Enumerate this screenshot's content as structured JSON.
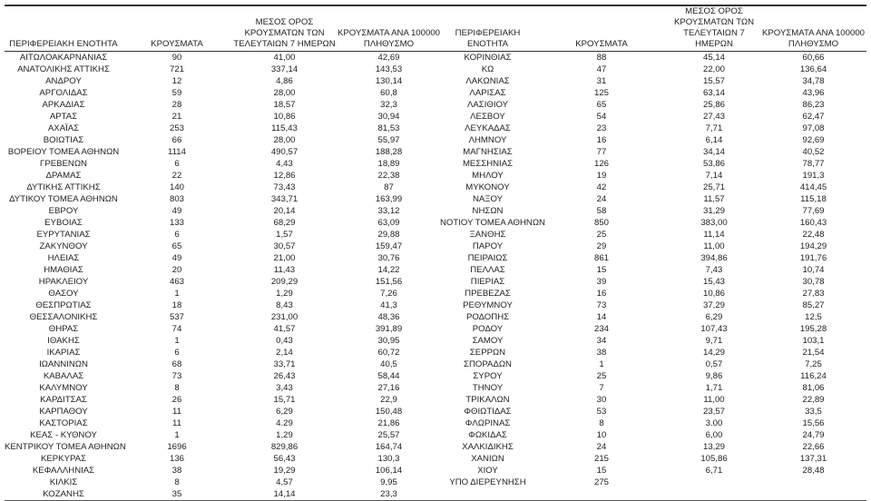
{
  "headers": {
    "region": "ΠΕΡΙΦΕΡΕΙΑΚΗ ΕΝΟΤΗΤΑ",
    "cases": "ΚΡΟΥΣΜΑΤΑ",
    "avg7": "ΜΕΣΟΣ ΟΡΟΣ\nΚΡΟΥΣΜΑΤΩΝ ΤΩΝ\nΤΕΛΕΥΤΑΙΩΝ 7 ΗΜΕΡΩΝ",
    "per100k": "ΚΡΟΥΣΜΑΤΑ ΑΝΑ 100000\nΠΛΗΘΥΣΜΟ"
  },
  "left_rows": [
    [
      "ΑΙΤΩΛΟΑΚΑΡΝΑΝΙΑΣ",
      "90",
      "41,00",
      "42,69"
    ],
    [
      "ΑΝΑΤΟΛΙΚΗΣ ΑΤΤΙΚΗΣ",
      "721",
      "337,14",
      "143,53"
    ],
    [
      "ΑΝΔΡΟΥ",
      "12",
      "4,86",
      "130,14"
    ],
    [
      "ΑΡΓΟΛΙΔΑΣ",
      "59",
      "28,00",
      "60,8"
    ],
    [
      "ΑΡΚΑΔΙΑΣ",
      "28",
      "18,57",
      "32,3"
    ],
    [
      "ΑΡΤΑΣ",
      "21",
      "10,86",
      "30,94"
    ],
    [
      "ΑΧΑΪΑΣ",
      "253",
      "115,43",
      "81,53"
    ],
    [
      "ΒΟΙΩΤΙΑΣ",
      "66",
      "28,00",
      "55,97"
    ],
    [
      "ΒΟΡΕΙΟΥ ΤΟΜΕΑ ΑΘΗΝΩΝ",
      "1114",
      "490,57",
      "188,28"
    ],
    [
      "ΓΡΕΒΕΝΩΝ",
      "6",
      "4,43",
      "18,89"
    ],
    [
      "ΔΡΑΜΑΣ",
      "22",
      "12,86",
      "22,38"
    ],
    [
      "ΔΥΤΙΚΗΣ ΑΤΤΙΚΗΣ",
      "140",
      "73,43",
      "87"
    ],
    [
      "ΔΥΤΙΚΟΥ ΤΟΜΕΑ ΑΘΗΝΩΝ",
      "803",
      "343,71",
      "163,99"
    ],
    [
      "ΕΒΡΟΥ",
      "49",
      "20,14",
      "33,12"
    ],
    [
      "ΕΥΒΟΙΑΣ",
      "133",
      "68,29",
      "63,09"
    ],
    [
      "ΕΥΡΥΤΑΝΙΑΣ",
      "6",
      "1,57",
      "29,88"
    ],
    [
      "ΖΑΚΥΝΘΟΥ",
      "65",
      "30,57",
      "159,47"
    ],
    [
      "ΗΛΕΙΑΣ",
      "49",
      "21,00",
      "30,76"
    ],
    [
      "ΗΜΑΘΙΑΣ",
      "20",
      "11,43",
      "14,22"
    ],
    [
      "ΗΡΑΚΛΕΙΟΥ",
      "463",
      "209,29",
      "151,56"
    ],
    [
      "ΘΑΣΟΥ",
      "1",
      "1,29",
      "7,26"
    ],
    [
      "ΘΕΣΠΡΩΤΙΑΣ",
      "18",
      "8,43",
      "41,3"
    ],
    [
      "ΘΕΣΣΑΛΟΝΙΚΗΣ",
      "537",
      "231,00",
      "48,36"
    ],
    [
      "ΘΗΡΑΣ",
      "74",
      "41,57",
      "391,89"
    ],
    [
      "ΙΘΑΚΗΣ",
      "1",
      "0,43",
      "30,95"
    ],
    [
      "ΙΚΑΡΙΑΣ",
      "6",
      "2,14",
      "60,72"
    ],
    [
      "ΙΩΑΝΝΙΝΩΝ",
      "68",
      "33,71",
      "40,5"
    ],
    [
      "ΚΑΒΑΛΑΣ",
      "73",
      "26,43",
      "58,44"
    ],
    [
      "ΚΑΛΥΜΝΟΥ",
      "8",
      "3,43",
      "27,16"
    ],
    [
      "ΚΑΡΔΙΤΣΑΣ",
      "26",
      "15,71",
      "22,9"
    ],
    [
      "ΚΑΡΠΑΘΟΥ",
      "11",
      "6,29",
      "150,48"
    ],
    [
      "ΚΑΣΤΟΡΙΑΣ",
      "11",
      "4.29",
      "21,86"
    ],
    [
      "ΚΕΑΣ - ΚΥΘΝΟΥ",
      "1",
      "1,29",
      "25,57"
    ],
    [
      "ΚΕΝΤΡΙΚΟΥ ΤΟΜΕΑ ΑΘΗΝΩΝ",
      "1696",
      "829,86",
      "164,74"
    ],
    [
      "ΚΕΡΚΥΡΑΣ",
      "136",
      "56,43",
      "130,3"
    ],
    [
      "ΚΕΦΑΛΛΗΝΙΑΣ",
      "38",
      "19,29",
      "106,14"
    ],
    [
      "ΚΙΛΚΙΣ",
      "8",
      "4,57",
      "9,95"
    ],
    [
      "ΚΟΖΑΝΗΣ",
      "35",
      "14,14",
      "23,3"
    ]
  ],
  "right_rows": [
    [
      "ΚΟΡΙΝΘΙΑΣ",
      "88",
      "45,14",
      "60,66"
    ],
    [
      "ΚΩ",
      "47",
      "22,00",
      "136,64"
    ],
    [
      "ΛΑΚΩΝΙΑΣ",
      "31",
      "15,57",
      "34,78"
    ],
    [
      "ΛΑΡΙΣΑΣ",
      "125",
      "63,14",
      "43,96"
    ],
    [
      "ΛΑΣΙΘΙΟΥ",
      "65",
      "25,86",
      "86,23"
    ],
    [
      "ΛΕΣΒΟΥ",
      "54",
      "27,43",
      "62,47"
    ],
    [
      "ΛΕΥΚΑΔΑΣ",
      "23",
      "7,71",
      "97,08"
    ],
    [
      "ΛΗΜΝΟΥ",
      "16",
      "6,14",
      "92,69"
    ],
    [
      "ΜΑΓΝΗΣΙΑΣ",
      "77",
      "34,14",
      "40,52"
    ],
    [
      "ΜΕΣΣΗΝΙΑΣ",
      "126",
      "53,86",
      "78,77"
    ],
    [
      "ΜΗΛΟΥ",
      "19",
      "7,14",
      "191,3"
    ],
    [
      "ΜΥΚΟΝΟΥ",
      "42",
      "25,71",
      "414,45"
    ],
    [
      "ΝΑΞΟΥ",
      "24",
      "11,57",
      "115,18"
    ],
    [
      "ΝΗΣΩΝ",
      "58",
      "31,29",
      "77,69"
    ],
    [
      "ΝΟΤΙΟΥ ΤΟΜΕΑ ΑΘΗΝΩΝ",
      "850",
      "383,00",
      "160,43"
    ],
    [
      "ΞΑΝΘΗΣ",
      "25",
      "11,14",
      "22,48"
    ],
    [
      "ΠΑΡΟΥ",
      "29",
      "11,00",
      "194,29"
    ],
    [
      "ΠΕΙΡΑΙΩΣ",
      "861",
      "394,86",
      "191,76"
    ],
    [
      "ΠΕΛΛΑΣ",
      "15",
      "7,43",
      "10,74"
    ],
    [
      "ΠΙΕΡΙΑΣ",
      "39",
      "15,43",
      "30,78"
    ],
    [
      "ΠΡΕΒΕΖΑΣ",
      "16",
      "10,86",
      "27,83"
    ],
    [
      "ΡΕΘΥΜΝΟΥ",
      "73",
      "37,29",
      "85,27"
    ],
    [
      "ΡΟΔΟΠΗΣ",
      "14",
      "6,29",
      "12,5"
    ],
    [
      "ΡΟΔΟΥ",
      "234",
      "107,43",
      "195,28"
    ],
    [
      "ΣΑΜΟΥ",
      "34",
      "9,71",
      "103,1"
    ],
    [
      "ΣΕΡΡΩΝ",
      "38",
      "14,29",
      "21,54"
    ],
    [
      "ΣΠΟΡΑΔΩΝ",
      "1",
      "0,57",
      "7,25"
    ],
    [
      "ΣΥΡΟΥ",
      "25",
      "9,86",
      "116,24"
    ],
    [
      "ΤΗΝΟΥ",
      "7",
      "1,71",
      "81,06"
    ],
    [
      "ΤΡΙΚΑΛΩΝ",
      "30",
      "11,00",
      "22,89"
    ],
    [
      "ΦΘΙΩΤΙΔΑΣ",
      "53",
      "23,57",
      "33,5"
    ],
    [
      "ΦΛΩΡΙΝΑΣ",
      "8",
      "3.00",
      "15,56"
    ],
    [
      "ΦΩΚΙΔΑΣ",
      "10",
      "6,00",
      "24,79"
    ],
    [
      "ΧΑΛΚΙΔΙΚΗΣ",
      "24",
      "13,29",
      "22,66"
    ],
    [
      "ΧΑΝΙΩΝ",
      "215",
      "105,86",
      "137,31"
    ],
    [
      "ΧΙΟΥ",
      "15",
      "6,71",
      "28,48"
    ],
    [
      "ΥΠΟ ΔΙΕΡΕΥΝΗΣΗ",
      "275",
      "",
      ""
    ]
  ]
}
